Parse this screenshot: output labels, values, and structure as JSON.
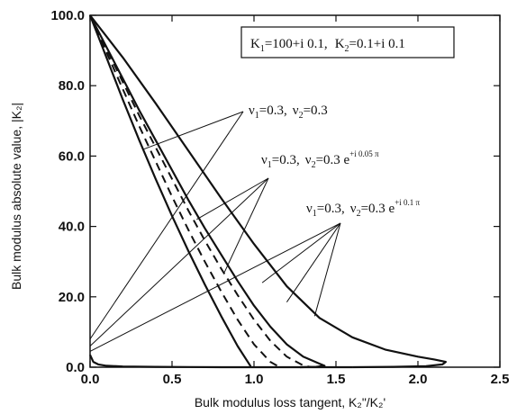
{
  "chart_data": {
    "type": "line",
    "xlabel": "Bulk modulus loss tangent, K₂\"/K₂'",
    "ylabel": "Bulk modulus absolute value, |K₂|",
    "xlim": [
      0.0,
      2.5
    ],
    "ylim": [
      0.0,
      100.0
    ],
    "x_ticks": [
      "0.0",
      "0.5",
      "1.0",
      "1.5",
      "2.0",
      "2.5"
    ],
    "y_ticks": [
      "0.0",
      "20.0",
      "40.0",
      "60.0",
      "80.0",
      "100.0"
    ],
    "grid": false,
    "legend_box": {
      "K1": "K",
      "K1_sub": "1",
      "K1_value": "=100+i 0.1,",
      "K2": "K",
      "K2_sub": "2",
      "K2_value": "=0.1+i 0.1"
    },
    "annotations": [
      {
        "nu1": "ν",
        "nu1_sub": "1",
        "nu1_value": "=0.3,",
        "nu2": "ν",
        "nu2_sub": "2",
        "nu2_value": "=0.3",
        "exp": ""
      },
      {
        "nu1": "ν",
        "nu1_sub": "1",
        "nu1_value": "=0.3,",
        "nu2": "ν",
        "nu2_sub": "2",
        "nu2_value": "=0.3 e",
        "exp": "+i 0.05 π"
      },
      {
        "nu1": "ν",
        "nu1_sub": "1",
        "nu1_value": "=0.3,",
        "nu2": "ν",
        "nu2_sub": "2",
        "nu2_value": "=0.3 e",
        "exp": "+i 0.1 π"
      }
    ],
    "series": [
      {
        "style": "solid",
        "x": [
          0.0,
          0.1,
          0.2,
          0.3,
          0.4,
          0.5,
          0.6,
          0.7,
          0.8,
          0.9,
          0.98
        ],
        "y": [
          100.0,
          88.0,
          76.0,
          64.5,
          53.5,
          43.0,
          33.0,
          23.5,
          14.5,
          6.0,
          0.2
        ]
      },
      {
        "style": "dashed",
        "x": [
          0.0,
          0.1,
          0.2,
          0.3,
          0.4,
          0.5,
          0.6,
          0.7,
          0.8,
          0.9,
          1.0,
          1.1,
          1.15
        ],
        "y": [
          100.0,
          89.5,
          79.0,
          68.5,
          58.5,
          48.5,
          39.0,
          30.0,
          21.5,
          13.5,
          6.5,
          1.5,
          0.2
        ]
      },
      {
        "style": "dashed",
        "x": [
          0.0,
          0.1,
          0.2,
          0.3,
          0.4,
          0.5,
          0.6,
          0.7,
          0.8,
          0.9,
          1.0,
          1.1,
          1.2,
          1.3,
          1.35
        ],
        "y": [
          100.0,
          90.5,
          81.0,
          71.5,
          62.5,
          53.5,
          44.5,
          36.0,
          28.0,
          20.5,
          13.5,
          7.5,
          3.0,
          0.5,
          0.0
        ]
      },
      {
        "style": "solid",
        "x": [
          0.0,
          0.1,
          0.2,
          0.3,
          0.4,
          0.5,
          0.6,
          0.7,
          0.8,
          0.9,
          1.0,
          1.1,
          1.2,
          1.3,
          1.4,
          1.43,
          1.38,
          1.28
        ],
        "y": [
          100.0,
          91.0,
          82.0,
          73.0,
          64.5,
          56.0,
          47.5,
          39.5,
          32.0,
          24.5,
          17.5,
          11.5,
          6.5,
          3.0,
          1.0,
          0.4,
          0.1,
          0.0
        ]
      },
      {
        "style": "solid",
        "x": [
          0.0,
          0.2,
          0.4,
          0.6,
          0.8,
          1.0,
          1.2,
          1.4,
          1.6,
          1.8,
          2.0,
          2.1,
          2.17,
          2.15,
          2.05,
          1.85,
          1.6
        ],
        "y": [
          100.0,
          88.0,
          75.0,
          61.5,
          48.0,
          35.0,
          23.0,
          14.0,
          8.5,
          5.0,
          3.0,
          2.2,
          1.5,
          0.8,
          0.3,
          0.1,
          0.0
        ]
      },
      {
        "style": "solid",
        "x": [
          0.0,
          0.02,
          0.05,
          0.1,
          0.2,
          0.4,
          0.6,
          0.8,
          1.0,
          1.2,
          1.4,
          1.6
        ],
        "y": [
          3.5,
          1.5,
          0.8,
          0.4,
          0.2,
          0.1,
          0.05,
          0.0,
          0.0,
          0.0,
          0.0,
          0.0
        ]
      }
    ]
  }
}
